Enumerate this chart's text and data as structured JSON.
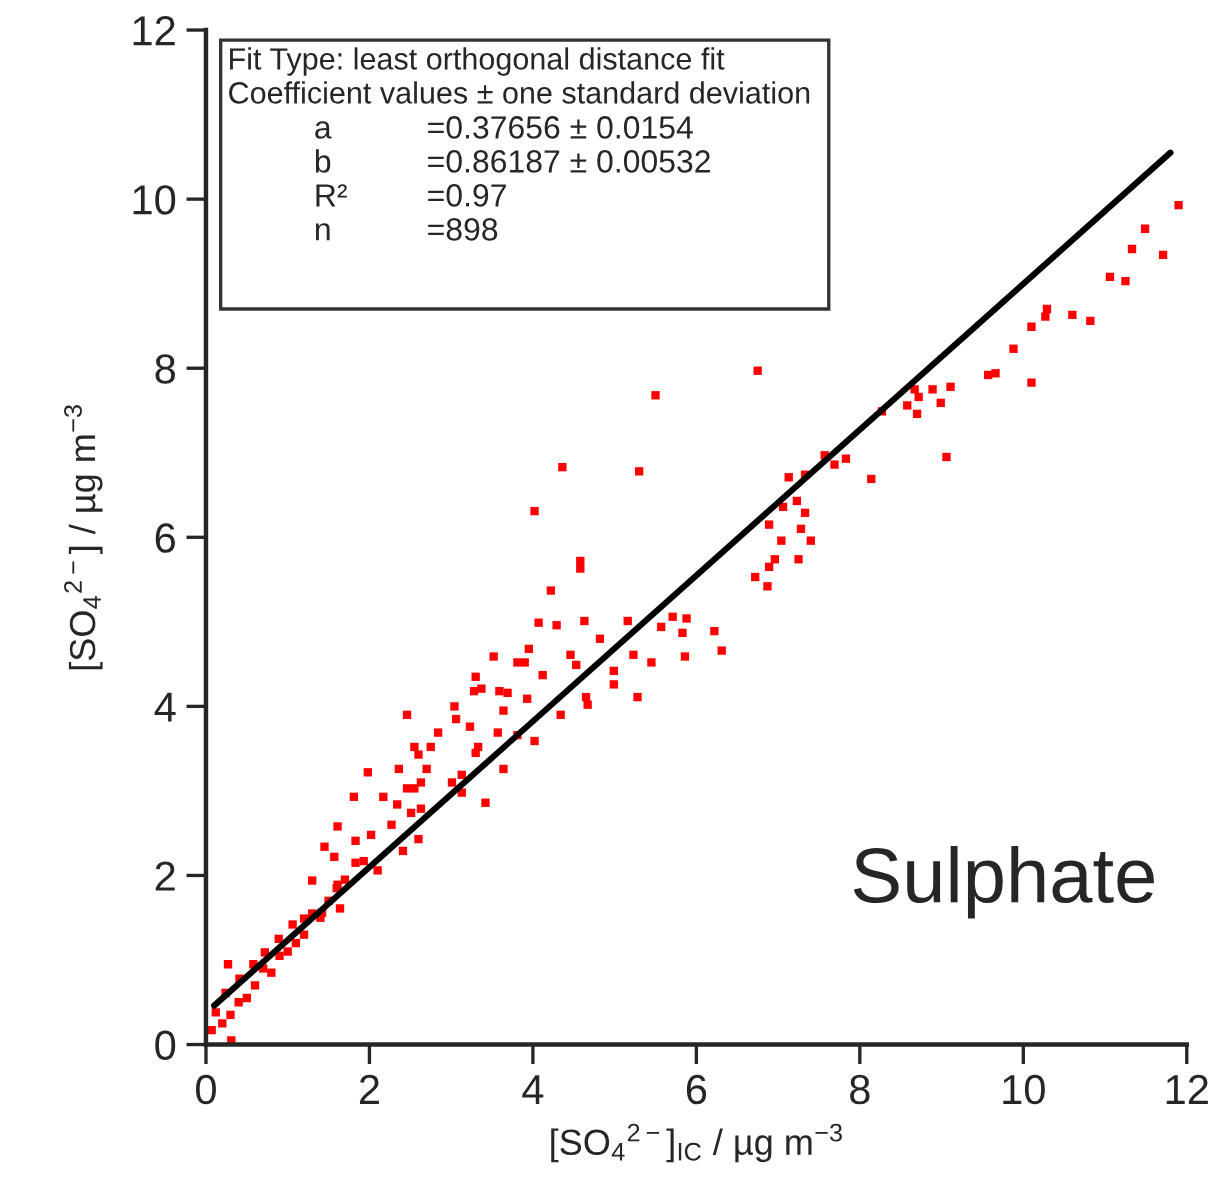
{
  "chart_data": {
    "type": "scatter",
    "xlabel": "[SO$_{4}$$^{2−}$]$_{IC}$ / µg m$^{−3}$",
    "ylabel": "[SO$_{4}$$^{2−}$] / µg m$^{−3}$",
    "xlim": [
      0,
      12
    ],
    "ylim": [
      0,
      12
    ],
    "xticks": [
      0,
      2,
      4,
      6,
      8,
      10,
      12
    ],
    "yticks": [
      0,
      2,
      4,
      6,
      8,
      10,
      12
    ],
    "grid": false,
    "marker": "square",
    "annotations": [
      "Fit Type: least orthogonal distance fit",
      "Coefficient values ± one standard deviation",
      "a",
      "=0.37656 ± 0.0154",
      "b",
      "=0.86187 ± 0.00532",
      "R²",
      "=0.97",
      "n",
      "=898",
      "Sulphate"
    ],
    "series": [
      {
        "color": "#ff0000",
        "x": [
          11.9,
          11.49,
          11.33,
          11.71,
          11.06,
          11.25,
          10.6,
          10.82,
          10.29,
          10.27,
          10.1,
          9.88,
          9.66,
          9.57,
          10.1,
          9.11,
          8.89,
          8.67,
          8.72,
          8.99,
          8.58,
          8.7,
          8.27,
          9.06,
          8.14,
          7.83,
          7.57,
          7.69,
          7.13,
          7.33,
          7.23,
          7.06,
          7.33,
          6.89,
          7.28,
          7.4,
          7.04,
          6.96,
          7.25,
          6.89,
          6.72,
          6.87,
          6.75,
          5.5,
          4.36,
          5.3,
          4.02,
          4.58,
          4.58,
          4.22,
          4.07,
          4.29,
          4.63,
          5.16,
          5.71,
          5.88,
          5.83,
          6.22,
          6.31,
          5.86,
          5.45,
          5.57,
          4.82,
          3.95,
          3.52,
          3.81,
          3.9,
          4.46,
          4.53,
          4.99,
          5.23,
          5.28,
          4.99,
          4.65,
          4.67,
          4.34,
          4.12,
          3.3,
          3.37,
          3.28,
          3.59,
          3.69,
          3.93,
          3.04,
          3.64,
          3.06,
          2.46,
          3.23,
          2.84,
          3.57,
          3.81,
          4.02,
          2.55,
          2.75,
          3.33,
          3.3,
          3.64,
          3.13,
          2.6,
          2.36,
          2.7,
          1.98,
          2.63,
          3.01,
          3.13,
          3.42,
          2.55,
          2.46,
          2.17,
          1.81,
          2.34,
          2.63,
          2.51,
          2.27,
          1.61,
          2.02,
          2.6,
          1.83,
          1.45,
          1.57,
          2.41,
          2.1,
          1.93,
          1.83,
          1.61,
          1.3,
          1.64,
          1.42,
          1.2,
          1.06,
          0.89,
          0.72,
          0.58,
          0.41,
          0.27,
          0.24,
          0.12,
          0.07,
          0.31,
          1.0,
          1.2,
          1.5,
          0.8,
          0.5,
          0.3,
          0.2,
          1.7,
          1.3,
          0.9,
          0.6,
          0.4,
          1.1,
          1.4,
          0.7,
          1.6
        ],
        "values": [
          9.93,
          9.65,
          9.41,
          9.34,
          9.08,
          9.03,
          8.63,
          8.56,
          8.7,
          8.61,
          8.49,
          8.23,
          7.94,
          7.92,
          7.83,
          7.78,
          7.75,
          7.75,
          7.66,
          7.59,
          7.56,
          7.46,
          7.49,
          6.95,
          6.69,
          6.93,
          6.97,
          6.86,
          6.71,
          6.74,
          6.43,
          6.36,
          6.29,
          6.15,
          6.1,
          5.96,
          5.96,
          5.74,
          5.74,
          5.65,
          5.53,
          5.42,
          7.97,
          7.68,
          6.83,
          6.78,
          6.31,
          5.72,
          5.63,
          5.37,
          4.99,
          4.96,
          5.01,
          5.01,
          5.06,
          5.04,
          4.87,
          4.89,
          4.66,
          4.59,
          4.52,
          4.94,
          4.8,
          4.68,
          4.59,
          4.52,
          4.52,
          4.61,
          4.49,
          4.42,
          4.61,
          4.11,
          4.26,
          4.11,
          4.02,
          3.9,
          4.37,
          4.35,
          4.21,
          4.18,
          4.18,
          4.16,
          4.09,
          4.0,
          3.95,
          3.85,
          3.9,
          3.76,
          3.69,
          3.69,
          3.66,
          3.59,
          3.52,
          3.52,
          3.52,
          3.45,
          3.26,
          3.19,
          3.43,
          3.26,
          3.26,
          3.22,
          3.1,
          3.1,
          2.98,
          2.86,
          3.03,
          3.03,
          2.93,
          2.93,
          2.84,
          2.79,
          2.74,
          2.6,
          2.58,
          2.48,
          2.43,
          2.41,
          2.34,
          2.22,
          2.29,
          2.06,
          2.17,
          2.15,
          1.89,
          1.94,
          1.61,
          1.56,
          1.49,
          1.42,
          1.25,
          1.09,
          0.95,
          0.78,
          0.95,
          0.61,
          0.38,
          0.17,
          0.05,
          1.1,
          1.3,
          1.7,
          0.85,
          0.55,
          0.35,
          0.25,
          1.95,
          1.55,
          1.05,
          0.7,
          0.5,
          1.2,
          1.5,
          0.9,
          1.85
        ]
      },
      {
        "type": "line",
        "marker": "none",
        "color": "#000000",
        "x": [
          0.1,
          11.8
        ],
        "values": [
          0.46,
          10.55
        ]
      }
    ]
  }
}
